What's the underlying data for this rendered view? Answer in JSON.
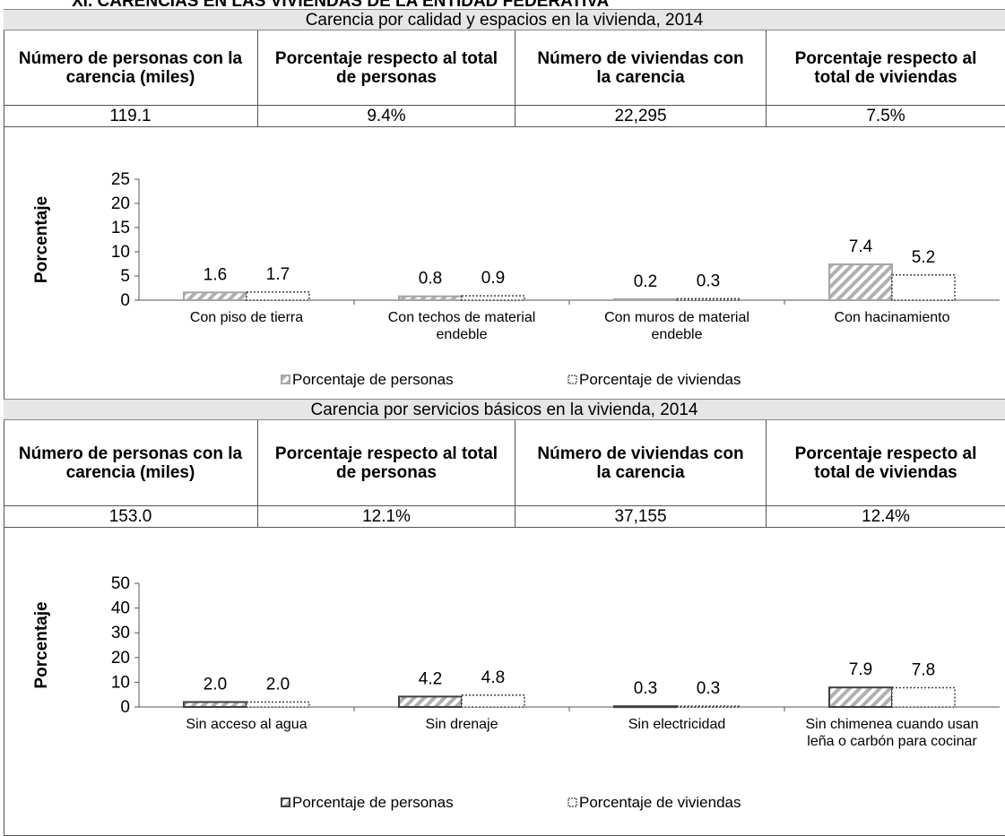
{
  "header": {
    "title": "XI. CARENCIAS EN LAS VIVIENDAS DE LA ENTIDAD FEDERATIVA"
  },
  "sections": [
    {
      "table": {
        "title": "Carencia por calidad y espacios en la vivienda, 2014",
        "columns": [
          "Número de personas con la carencia (miles)",
          "Porcentaje respecto al total de personas",
          "Número de viviendas con la carencia",
          "Porcentaje respecto al total de viviendas"
        ],
        "row": [
          "119.1",
          "9.4%",
          "22,295",
          "7.5%"
        ]
      },
      "chart": {
        "type": "bar",
        "y_label": "Porcentaje",
        "categories": [
          "Con piso de tierra",
          "Con techos de material endeble",
          "Con muros de material endeble",
          "Con hacinamiento"
        ],
        "series": [
          {
            "name": "Porcentaje de personas",
            "color": "#a6a6a6",
            "values": [
              1.6,
              0.8,
              0.2,
              7.4
            ],
            "value_labels": [
              "1.6",
              "0.8",
              "0.2",
              "7.4"
            ]
          },
          {
            "name": "Porcentaje de viviendas",
            "color": "#404040",
            "values": [
              1.7,
              0.9,
              0.3,
              5.2
            ],
            "value_labels": [
              "1.7",
              "0.9",
              "0.3",
              "5.2"
            ]
          }
        ],
        "ylim": [
          0,
          25
        ],
        "yticks": [
          0,
          5,
          10,
          15,
          20,
          25
        ]
      }
    },
    {
      "table": {
        "title": "Carencia por servicios básicos en la vivienda, 2014",
        "columns": [
          "Número de personas con la carencia (miles)",
          "Porcentaje respecto al total de personas",
          "Número de viviendas con la carencia",
          "Porcentaje respecto al total de viviendas"
        ],
        "row": [
          "153.0",
          "12.1%",
          "37,155",
          "12.4%"
        ]
      },
      "chart": {
        "type": "bar",
        "y_label": "Porcentaje",
        "categories": [
          "Sin acceso al agua",
          "Sin drenaje",
          "Sin electricidad",
          "Sin chimenea cuando usan leña o carbón para cocinar"
        ],
        "series": [
          {
            "name": "Porcentaje de personas",
            "color": "#404040",
            "values": [
              2.0,
              4.2,
              0.3,
              7.9
            ],
            "value_labels": [
              "2.0",
              "4.2",
              "0.3",
              "7.9"
            ]
          },
          {
            "name": "Porcentaje de viviendas",
            "color": "#404040",
            "values": [
              2.0,
              4.8,
              0.3,
              7.8
            ],
            "value_labels": [
              "2.0",
              "4.8",
              "0.3",
              "7.8"
            ]
          }
        ],
        "ylim": [
          0,
          50
        ],
        "yticks": [
          0,
          10,
          20,
          30,
          40,
          50
        ]
      }
    }
  ]
}
